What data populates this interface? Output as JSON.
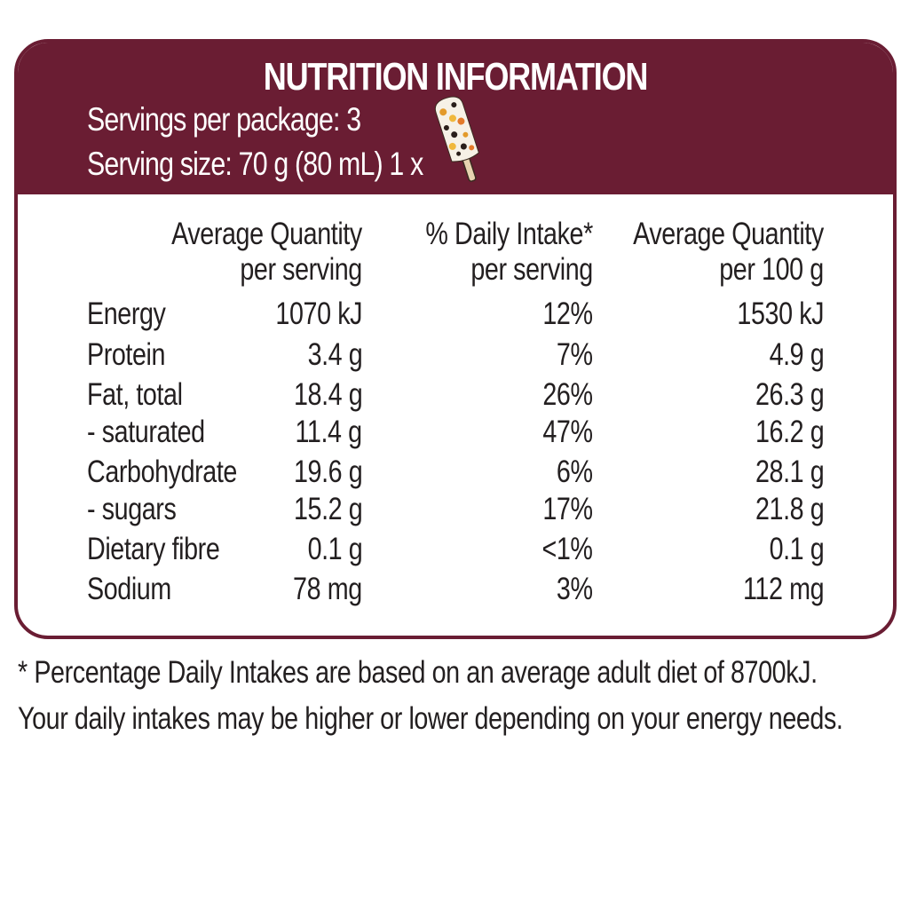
{
  "title": "NUTRITION INFORMATION",
  "servings_per_package": "Servings per package: 3",
  "serving_size": "Serving size: 70 g (80 mL) 1 x",
  "columns": [
    {
      "line1": "Average Quantity",
      "line2": "per serving"
    },
    {
      "line1": "% Daily Intake*",
      "line2": "per serving"
    },
    {
      "line1": "Average Quantity",
      "line2": "per 100 g"
    }
  ],
  "rows": [
    {
      "name": "Energy",
      "per_serving": "1070 kJ",
      "daily_intake": "12%",
      "per_100g": "1530 kJ"
    },
    {
      "name": "Protein",
      "per_serving": "3.4 g",
      "daily_intake": "7%",
      "per_100g": "4.9 g"
    },
    {
      "name": "Fat, total",
      "per_serving": "18.4 g",
      "daily_intake": "26%",
      "per_100g": "26.3 g"
    },
    {
      "name": "- saturated",
      "per_serving": "11.4 g",
      "daily_intake": "47%",
      "per_100g": "16.2 g"
    },
    {
      "name": "Carbohydrate",
      "per_serving": "19.6 g",
      "daily_intake": "6%",
      "per_100g": "28.1 g"
    },
    {
      "name": "- sugars",
      "per_serving": "15.2 g",
      "daily_intake": "17%",
      "per_100g": "21.8 g"
    },
    {
      "name": "Dietary fibre",
      "per_serving": "0.1 g",
      "daily_intake": "<1%",
      "per_100g": "0.1 g"
    },
    {
      "name": "Sodium",
      "per_serving": "78 mg",
      "daily_intake": "3%",
      "per_100g": "112 mg"
    }
  ],
  "footnote": {
    "line1": "* Percentage Daily Intakes are based on an average adult diet of 8700kJ.",
    "line2": "Your daily intakes may be higher or lower depending on your energy needs."
  },
  "colors": {
    "header": "#6a1d33",
    "text": "#231f20"
  },
  "icons": {
    "serving_icon": "ice-cream-stick-icon"
  }
}
